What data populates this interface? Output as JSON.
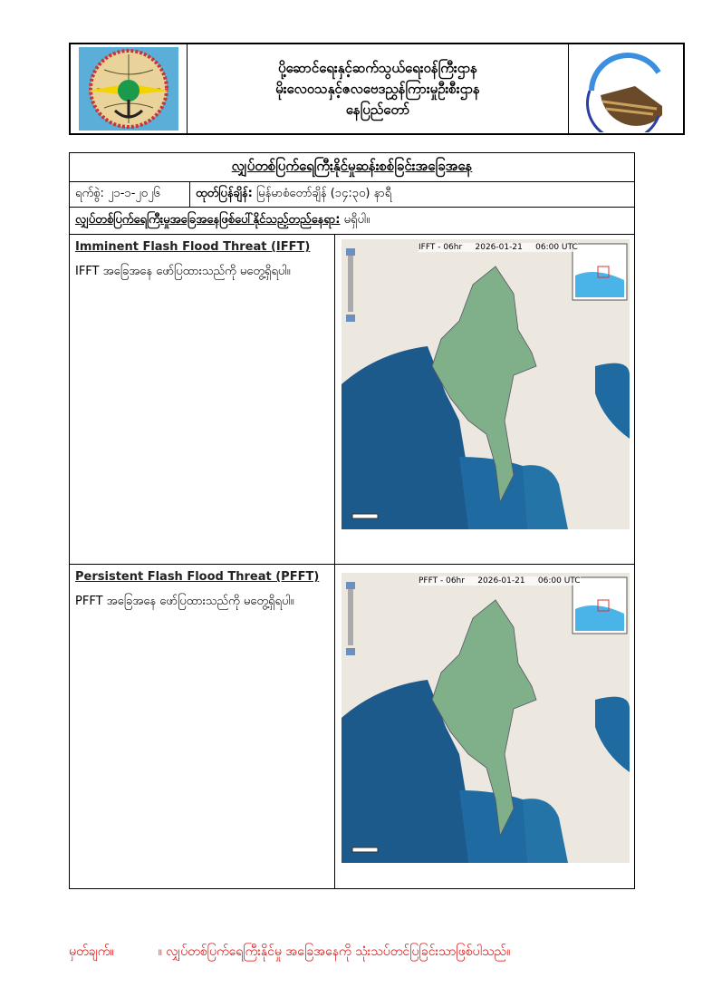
{
  "header": {
    "ministry": "ပို့ဆောင်ရေးနှင့်ဆက်သွယ်ရေးဝန်ကြီးဌာန",
    "department": "မိုးလေဝသနှင့်ဇလဗေဒညွှန်ကြားမှုဦးစီးဌာန",
    "city": "နေပြည်တော်"
  },
  "report": {
    "title": "လျှပ်တစ်ပြက်ရေကြီးနိုင်မှုဆန်းစစ်ခြင်းအခြေအနေ",
    "date": "ရက်စွဲ: ၂၁-၁-၂၀၂၆",
    "issued_label": "ထုတ်ပြန်ချိန်:",
    "issued_value": "မြန်မာစံတော်ချိန် (၁၄:၃၀) နာရီ",
    "location_label": "လျှပ်တစ်ပြက်ရေကြီးမှုအခြေအနေဖြစ်ပေါ်နိုင်သည့်တည်နေရာ:",
    "location_value": "မရှိပါ။"
  },
  "sections": [
    {
      "heading": "Imminent Flash Flood Threat (IFFT)",
      "text": "IFFT အခြေအနေ ဖော်ပြထားသည်ကို မတွေ့ရှိရပါ။",
      "map": {
        "product": "IFFT - 06hr",
        "date": "2026-01-21",
        "time": "06:00 UTC"
      }
    },
    {
      "heading": "Persistent Flash Flood Threat (PFFT)",
      "text": "PFFT အခြေအနေ ဖော်ပြထားသည်ကို မတွေ့ရှိရပါ။",
      "map": {
        "product": "PFFT - 06hr",
        "date": "2026-01-21",
        "time": "06:00 UTC"
      }
    }
  ],
  "footer": {
    "note_label": "မှတ်ချက်။",
    "note_text": "။ လျှပ်တစ်ပြက်ရေကြီးနိုင်မှု အခြေအနေကို သုံးသပ်တင်ပြခြင်းသာဖြစ်ပါသည်။"
  },
  "colors": {
    "footer_text": "#e00000",
    "sea": "#1b5a8a",
    "land": "#ece8e0",
    "flood_layer": "#7fb08a"
  }
}
